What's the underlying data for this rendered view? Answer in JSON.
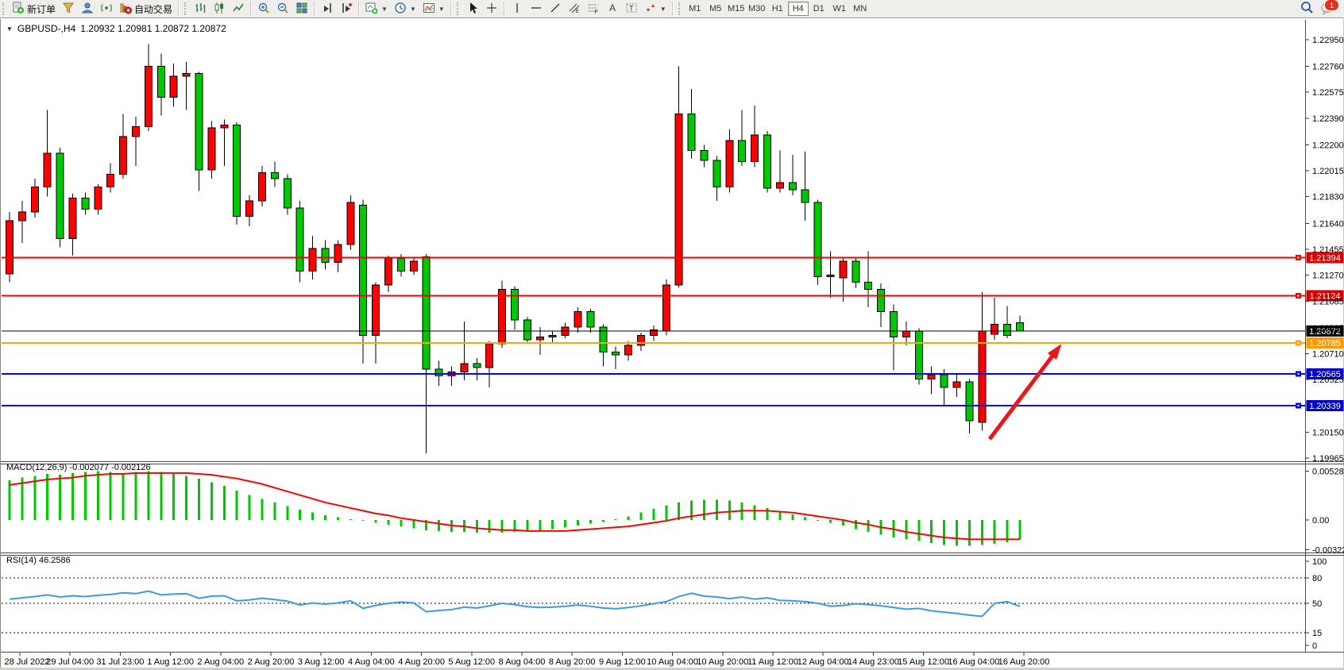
{
  "toolbar": {
    "new_order_label": "新订单",
    "autotrade_label": "自动交易",
    "timeframes": [
      "M1",
      "M5",
      "M15",
      "M30",
      "H1",
      "H4",
      "D1",
      "W1",
      "MN"
    ],
    "active_timeframe": "H4",
    "notification_count": "1"
  },
  "chart": {
    "symbol_period": "GBPUSD-,H4",
    "ohlc_readout": "1.20932 1.20981 1.20872 1.20872",
    "macd_label": "MACD(12,26,9) -0.002077 -0.002126",
    "rsi_label": "RSI(14) 46.2586"
  },
  "colors": {
    "bull": "#ff0000",
    "bear": "#00c800",
    "wick": "#000000",
    "macd_hist": "#00c800",
    "macd_signal": "#ff0000",
    "rsi_line": "#3c9be0",
    "arrow": "#e81818",
    "badge_red": "#dd0000",
    "badge_black": "#000000",
    "badge_orange": "#ff9900",
    "badge_blue": "#0000cc"
  },
  "chart_data": {
    "type": "candlestick",
    "symbol": "GBPUSD-",
    "timeframe": "H4",
    "price_axis_ticks": [
      "1.22950",
      "1.22760",
      "1.22575",
      "1.22390",
      "1.22200",
      "1.22015",
      "1.21830",
      "1.21640",
      "1.21455",
      "1.21270",
      "1.21085",
      "1.20895",
      "1.20710",
      "1.20525",
      "1.20150",
      "1.19965"
    ],
    "date_labels": [
      "28 Jul 2022",
      "29 Jul 04:00",
      "31 Jul 23:00",
      "1 Aug 12:00",
      "2 Aug 04:00",
      "2 Aug 20:00",
      "3 Aug 12:00",
      "4 Aug 04:00",
      "4 Aug 20:00",
      "5 Aug 12:00",
      "8 Aug 04:00",
      "8 Aug 20:00",
      "9 Aug 12:00",
      "10 Aug 04:00",
      "10 Aug 20:00",
      "11 Aug 12:00",
      "12 Aug 04:00",
      "14 Aug 23:00",
      "15 Aug 12:00",
      "16 Aug 04:00",
      "16 Aug 20:00"
    ],
    "hlines": [
      {
        "price": 1.21394,
        "color": "#ff0000",
        "width": 2,
        "label": "1.21394",
        "badge": "#dd0000"
      },
      {
        "price": 1.21124,
        "color": "#ff0000",
        "width": 2,
        "label": "1.21124",
        "badge": "#dd0000"
      },
      {
        "price": 1.20872,
        "color": "#000000",
        "width": 1,
        "label": "1.20872",
        "badge": "#000000"
      },
      {
        "price": 1.20785,
        "color": "#ffa500",
        "width": 2,
        "label": "1.20785",
        "badge": "#ff9900"
      },
      {
        "price": 1.20565,
        "color": "#0000ff",
        "width": 2,
        "label": "1.20565",
        "badge": "#0000cc"
      },
      {
        "price": 1.20339,
        "color": "#0000ff",
        "width": 2,
        "label": "1.20339",
        "badge": "#0000cc"
      }
    ],
    "arrow_annotation": {
      "bar1": 77.6,
      "price1": 1.201,
      "bar2": 83.3,
      "price2": 1.2078
    },
    "candles": [
      [
        1.2128,
        1.2172,
        1.2122,
        1.2166
      ],
      [
        1.2166,
        1.218,
        1.215,
        1.2172
      ],
      [
        1.2172,
        1.2196,
        1.2168,
        1.219
      ],
      [
        1.219,
        1.2245,
        1.2183,
        1.2214
      ],
      [
        1.2214,
        1.2218,
        1.2147,
        1.2153
      ],
      [
        1.2153,
        1.2185,
        1.2141,
        1.2182
      ],
      [
        1.2182,
        1.2186,
        1.217,
        1.2174
      ],
      [
        1.2174,
        1.2192,
        1.217,
        1.219
      ],
      [
        1.219,
        1.2207,
        1.2186,
        1.2199
      ],
      [
        1.2199,
        1.2242,
        1.2196,
        1.2226
      ],
      [
        1.2226,
        1.224,
        1.2205,
        1.2233
      ],
      [
        1.2233,
        1.2292,
        1.223,
        1.2276
      ],
      [
        1.2276,
        1.2285,
        1.2241,
        1.2254
      ],
      [
        1.2254,
        1.2278,
        1.2247,
        1.2269
      ],
      [
        1.2269,
        1.2279,
        1.2245,
        1.2271
      ],
      [
        1.2271,
        1.2272,
        1.2187,
        1.2202
      ],
      [
        1.2202,
        1.2237,
        1.2196,
        1.2232
      ],
      [
        1.2232,
        1.2238,
        1.2205,
        1.2234
      ],
      [
        1.2234,
        1.2236,
        1.2163,
        1.2169
      ],
      [
        1.2169,
        1.2184,
        1.2162,
        1.218
      ],
      [
        1.218,
        1.2205,
        1.2176,
        1.22
      ],
      [
        1.22,
        1.2208,
        1.219,
        1.2196
      ],
      [
        1.2196,
        1.2199,
        1.217,
        1.2175
      ],
      [
        1.2175,
        1.218,
        1.2122,
        1.213
      ],
      [
        1.213,
        1.2155,
        1.2124,
        1.2146
      ],
      [
        1.2146,
        1.2152,
        1.2131,
        1.2136
      ],
      [
        1.2136,
        1.2152,
        1.2129,
        1.2149
      ],
      [
        1.2149,
        1.2184,
        1.2145,
        1.2179
      ],
      [
        1.2177,
        1.2181,
        1.2064,
        1.2084
      ],
      [
        1.2084,
        1.2122,
        1.2064,
        1.212
      ],
      [
        1.212,
        1.2141,
        1.2115,
        1.2139
      ],
      [
        1.2139,
        1.2142,
        1.2126,
        1.213
      ],
      [
        1.213,
        1.214,
        1.2127,
        1.2137
      ],
      [
        1.214,
        1.2142,
        1.2,
        1.206
      ],
      [
        1.206,
        1.2066,
        1.2048,
        1.2055
      ],
      [
        1.2055,
        1.2062,
        1.2048,
        1.2058
      ],
      [
        1.2058,
        1.2094,
        1.2052,
        1.2064
      ],
      [
        1.2064,
        1.2068,
        1.2052,
        1.2061
      ],
      [
        1.2061,
        1.208,
        1.2047,
        1.2078
      ],
      [
        1.2078,
        1.2123,
        1.2075,
        1.2117
      ],
      [
        1.2117,
        1.2119,
        1.2088,
        1.2095
      ],
      [
        1.2095,
        1.2097,
        1.2079,
        1.2081
      ],
      [
        1.2081,
        1.209,
        1.207,
        1.2083
      ],
      [
        1.2083,
        1.2087,
        1.2078,
        1.2084
      ],
      [
        1.2084,
        1.2093,
        1.2082,
        1.209
      ],
      [
        1.209,
        1.2104,
        1.2086,
        1.2101
      ],
      [
        1.2101,
        1.2103,
        1.2086,
        1.209
      ],
      [
        1.209,
        1.2092,
        1.2062,
        1.2072
      ],
      [
        1.2072,
        1.2076,
        1.206,
        1.207
      ],
      [
        1.207,
        1.208,
        1.2066,
        1.2077
      ],
      [
        1.2077,
        1.2086,
        1.2073,
        1.2084
      ],
      [
        1.2084,
        1.2091,
        1.208,
        1.2088
      ],
      [
        1.2087,
        1.2124,
        1.2084,
        1.212
      ],
      [
        1.212,
        1.2276,
        1.2118,
        1.2242
      ],
      [
        1.2242,
        1.226,
        1.221,
        1.2216
      ],
      [
        1.2216,
        1.222,
        1.2204,
        1.2209
      ],
      [
        1.2209,
        1.2212,
        1.218,
        1.219
      ],
      [
        1.219,
        1.2231,
        1.2186,
        1.2223
      ],
      [
        1.2223,
        1.2245,
        1.2205,
        1.2208
      ],
      [
        1.2208,
        1.2248,
        1.2204,
        1.2227
      ],
      [
        1.2227,
        1.223,
        1.2186,
        1.2189
      ],
      [
        1.2189,
        1.2216,
        1.2186,
        1.2193
      ],
      [
        1.2193,
        1.2213,
        1.2184,
        1.2188
      ],
      [
        1.2188,
        1.2215,
        1.2166,
        1.2179
      ],
      [
        1.2179,
        1.2181,
        1.212,
        1.2126
      ],
      [
        1.2126,
        1.2144,
        1.2111,
        1.2127
      ],
      [
        1.2125,
        1.214,
        1.2108,
        1.2137
      ],
      [
        1.2137,
        1.214,
        1.2118,
        1.2122
      ],
      [
        1.2122,
        1.2144,
        1.2104,
        1.2117
      ],
      [
        1.2117,
        1.2121,
        1.209,
        1.2101
      ],
      [
        1.2101,
        1.2106,
        1.2059,
        1.2083
      ],
      [
        1.2083,
        1.2094,
        1.2077,
        1.2087
      ],
      [
        1.2087,
        1.2089,
        1.2049,
        1.2053
      ],
      [
        1.2053,
        1.2062,
        1.2042,
        1.2056
      ],
      [
        1.2056,
        1.206,
        1.2034,
        1.2047
      ],
      [
        1.2047,
        1.2057,
        1.204,
        1.2051
      ],
      [
        1.2051,
        1.2053,
        1.2014,
        1.2023
      ],
      [
        1.2022,
        1.2115,
        1.2016,
        1.2087
      ],
      [
        1.2085,
        1.2111,
        1.2081,
        1.2092
      ],
      [
        1.2092,
        1.2105,
        1.2082,
        1.2084
      ],
      [
        1.20932,
        1.20981,
        1.20872,
        1.20872
      ]
    ],
    "macd": {
      "name": "MACD(12,26,9)",
      "current_values": [
        -0.002077,
        -0.002126
      ],
      "axis_ticks": [
        "0.005286",
        "0.00",
        "-0.003223"
      ],
      "histogram": [
        0.0043,
        0.0046,
        0.0048,
        0.005,
        0.0049,
        0.0051,
        0.0052,
        0.0053,
        0.0052,
        0.0051,
        0.0052,
        0.0053,
        0.0052,
        0.005,
        0.0048,
        0.0045,
        0.0041,
        0.0037,
        0.0032,
        0.0027,
        0.0023,
        0.0019,
        0.0015,
        0.0011,
        0.0008,
        0.0005,
        0.0003,
        0.0001,
        -0.0001,
        -0.0003,
        -0.0005,
        -0.0007,
        -0.0009,
        -0.0011,
        -0.0012,
        -0.0013,
        -0.0013,
        -0.0014,
        -0.0014,
        -0.0014,
        -0.0013,
        -0.0012,
        -0.0011,
        -0.001,
        -0.0008,
        -0.0006,
        -0.0004,
        -0.0002,
        0.0001,
        0.0004,
        0.0008,
        0.0012,
        0.0016,
        0.0019,
        0.0021,
        0.0022,
        0.0022,
        0.0021,
        0.0019,
        0.0016,
        0.0013,
        0.0009,
        0.0006,
        0.0003,
        0.0,
        -0.0003,
        -0.0006,
        -0.001,
        -0.0013,
        -0.0016,
        -0.0019,
        -0.0021,
        -0.0023,
        -0.0025,
        -0.0027,
        -0.0028,
        -0.0028,
        -0.0027,
        -0.0026,
        -0.0024,
        -0.0021
      ],
      "signal": [
        0.0038,
        0.004,
        0.0042,
        0.0044,
        0.0045,
        0.0046,
        0.0048,
        0.0049,
        0.005,
        0.005,
        0.0051,
        0.0051,
        0.0051,
        0.0051,
        0.0051,
        0.005,
        0.0049,
        0.0047,
        0.0045,
        0.0042,
        0.0039,
        0.0035,
        0.0031,
        0.0027,
        0.0023,
        0.0019,
        0.0016,
        0.0013,
        0.001,
        0.0007,
        0.0005,
        0.0002,
        0.0,
        -0.0002,
        -0.0004,
        -0.0006,
        -0.0007,
        -0.0009,
        -0.001,
        -0.0011,
        -0.0011,
        -0.0012,
        -0.0012,
        -0.0012,
        -0.0012,
        -0.0011,
        -0.001,
        -0.0009,
        -0.0008,
        -0.0007,
        -0.0005,
        -0.0003,
        -0.0001,
        0.0002,
        0.0004,
        0.0006,
        0.0008,
        0.0009,
        0.001,
        0.001,
        0.001,
        0.0009,
        0.0008,
        0.0006,
        0.0004,
        0.0002,
        0.0,
        -0.0003,
        -0.0005,
        -0.0008,
        -0.001,
        -0.0013,
        -0.0015,
        -0.0017,
        -0.0019,
        -0.002,
        -0.0021,
        -0.0021,
        -0.0021,
        -0.0021,
        -0.0021
      ]
    },
    "rsi": {
      "name": "RSI(14)",
      "current_value": 46.2586,
      "axis_ticks": [
        "100",
        "80",
        "50",
        "15",
        "0"
      ],
      "levels": [
        80,
        50,
        15
      ],
      "values": [
        55.0,
        56.5,
        58.0,
        60.0,
        57.5,
        59.0,
        58.0,
        59.5,
        60.5,
        62.5,
        61.5,
        64.5,
        60.0,
        61.0,
        61.5,
        56.0,
        58.5,
        59.0,
        53.0,
        54.0,
        56.0,
        54.5,
        52.5,
        48.0,
        50.5,
        49.0,
        50.5,
        53.0,
        44.0,
        47.5,
        50.0,
        51.5,
        50.5,
        40.0,
        41.5,
        42.5,
        45.5,
        44.5,
        47.0,
        50.0,
        48.5,
        46.0,
        45.0,
        45.5,
        46.5,
        48.0,
        46.5,
        44.5,
        43.5,
        45.0,
        47.0,
        49.5,
        52.0,
        58.0,
        62.0,
        58.5,
        57.5,
        55.5,
        57.5,
        55.0,
        56.5,
        53.5,
        53.0,
        52.0,
        50.0,
        46.5,
        47.5,
        49.5,
        48.5,
        47.0,
        45.0,
        43.0,
        44.0,
        41.0,
        39.5,
        38.0,
        36.0,
        34.5,
        50.0,
        52.0,
        46.26
      ]
    }
  }
}
